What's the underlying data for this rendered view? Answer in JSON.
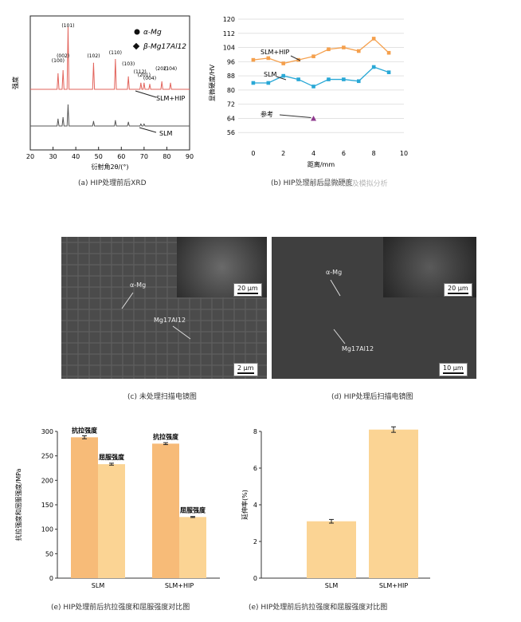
{
  "panel_a": {
    "caption": "(a) HIP处理前后XRD",
    "legend": {
      "alpha": "α-Mg",
      "beta": "β-Mg17Al12"
    },
    "peak_labels": [
      "(100)",
      "(002)",
      "(101)",
      "(102)",
      "(110)",
      "(103)",
      "(112)",
      "(201)",
      "(004)",
      "(202)",
      "(104)",
      "(210)"
    ],
    "curve_labels": {
      "top": "SLM+HIP",
      "bottom": "SLM"
    },
    "colors": {
      "top": "#e2635b",
      "bottom": "#555555"
    }
  },
  "panel_b": {
    "caption": "(b) HIP处理前后显微硬度",
    "note_label": "参考"
  },
  "panel_c": {
    "caption": "(c) 未处理扫描电镜图",
    "label_alpha": "α-Mg",
    "label_beta": "Mg17Al12",
    "scale_inset": "20 μm",
    "scale_main": "2 μm"
  },
  "panel_d": {
    "caption": "(d) HIP处理后扫描电镜图",
    "label_alpha": "α-Mg",
    "label_beta": "Mg17Al12",
    "scale_inset": "20 μm",
    "scale_main": "10 μm"
  },
  "panel_e1": {
    "caption": "(e) HIP处理前后抗拉强度和屈服强度对比图"
  },
  "panel_e2": {
    "caption": "(e) HIP处理前后抗拉强度和屈服强度对比图"
  },
  "watermark": "公众号 · 材料成型及模拟分析",
  "chart_data": [
    {
      "type": "line",
      "panel": "a",
      "xlabel": "衍射角2θ/(°)",
      "ylabel": "强度",
      "xlim": [
        20,
        90
      ],
      "xticks": [
        20,
        30,
        40,
        50,
        60,
        70,
        80,
        90
      ],
      "series": [
        {
          "name": "SLM+HIP",
          "x": [
            32.2,
            34.4,
            36.6,
            47.8,
            57.4,
            63.1,
            68.6,
            70.0,
            72.5,
            77.8,
            81.6
          ],
          "y": [
            0.25,
            0.3,
            1.0,
            0.42,
            0.48,
            0.2,
            0.1,
            0.1,
            0.08,
            0.12,
            0.1
          ]
        },
        {
          "name": "SLM",
          "x": [
            32.2,
            34.4,
            36.6,
            47.8,
            57.4,
            63.1,
            68.6,
            70.0
          ],
          "y": [
            0.18,
            0.22,
            0.55,
            0.12,
            0.14,
            0.1,
            0.05,
            0.05
          ]
        }
      ]
    },
    {
      "type": "line",
      "panel": "b",
      "xlabel": "距离/mm",
      "ylabel": "显微硬度/HV",
      "xlim": [
        -1,
        10
      ],
      "ylim": [
        48,
        120
      ],
      "xticks": [
        0,
        2,
        4,
        6,
        8,
        10
      ],
      "yticks": [
        56,
        64,
        72,
        80,
        88,
        96,
        104,
        112,
        120
      ],
      "series": [
        {
          "name": "SLM+HIP",
          "color": "#f5a04d",
          "x": [
            0,
            1,
            2,
            3,
            4,
            5,
            6,
            7,
            8,
            9
          ],
          "y": [
            97,
            98,
            95,
            97,
            99,
            103,
            104,
            102,
            109,
            101
          ]
        },
        {
          "name": "SLM",
          "color": "#29a8d6",
          "x": [
            0,
            1,
            2,
            3,
            4,
            5,
            6,
            7,
            8,
            9
          ],
          "y": [
            84,
            84,
            88,
            86,
            82,
            86,
            86,
            85,
            93,
            90
          ]
        },
        {
          "name": "参考",
          "color": "#8e3a8e",
          "type": "scatter",
          "x": [
            4
          ],
          "y": [
            64
          ]
        }
      ]
    },
    {
      "type": "bar",
      "panel": "e-left",
      "ylabel": "抗拉强度和屈服强度/MPa",
      "ylim": [
        0,
        300
      ],
      "yticks": [
        0,
        50,
        100,
        150,
        200,
        250,
        300
      ],
      "categories": [
        "SLM",
        "SLM+HIP"
      ],
      "series": [
        {
          "name": "抗拉强度",
          "color": "#f7bb78",
          "values": [
            288,
            275
          ],
          "errors": [
            3,
            2
          ]
        },
        {
          "name": "屈服强度",
          "color": "#fbd494",
          "values": [
            233,
            125
          ],
          "errors": [
            2,
            1
          ]
        }
      ]
    },
    {
      "type": "bar",
      "panel": "e-right",
      "ylabel": "延伸率(%)",
      "ylim": [
        0,
        8
      ],
      "yticks": [
        0,
        2,
        4,
        6,
        8
      ],
      "categories": [
        "SLM",
        "SLM+HIP"
      ],
      "series": [
        {
          "name": "延伸率",
          "color": "#fbd494",
          "values": [
            3.1,
            8.1
          ],
          "errors": [
            0.1,
            0.15
          ]
        }
      ]
    }
  ]
}
